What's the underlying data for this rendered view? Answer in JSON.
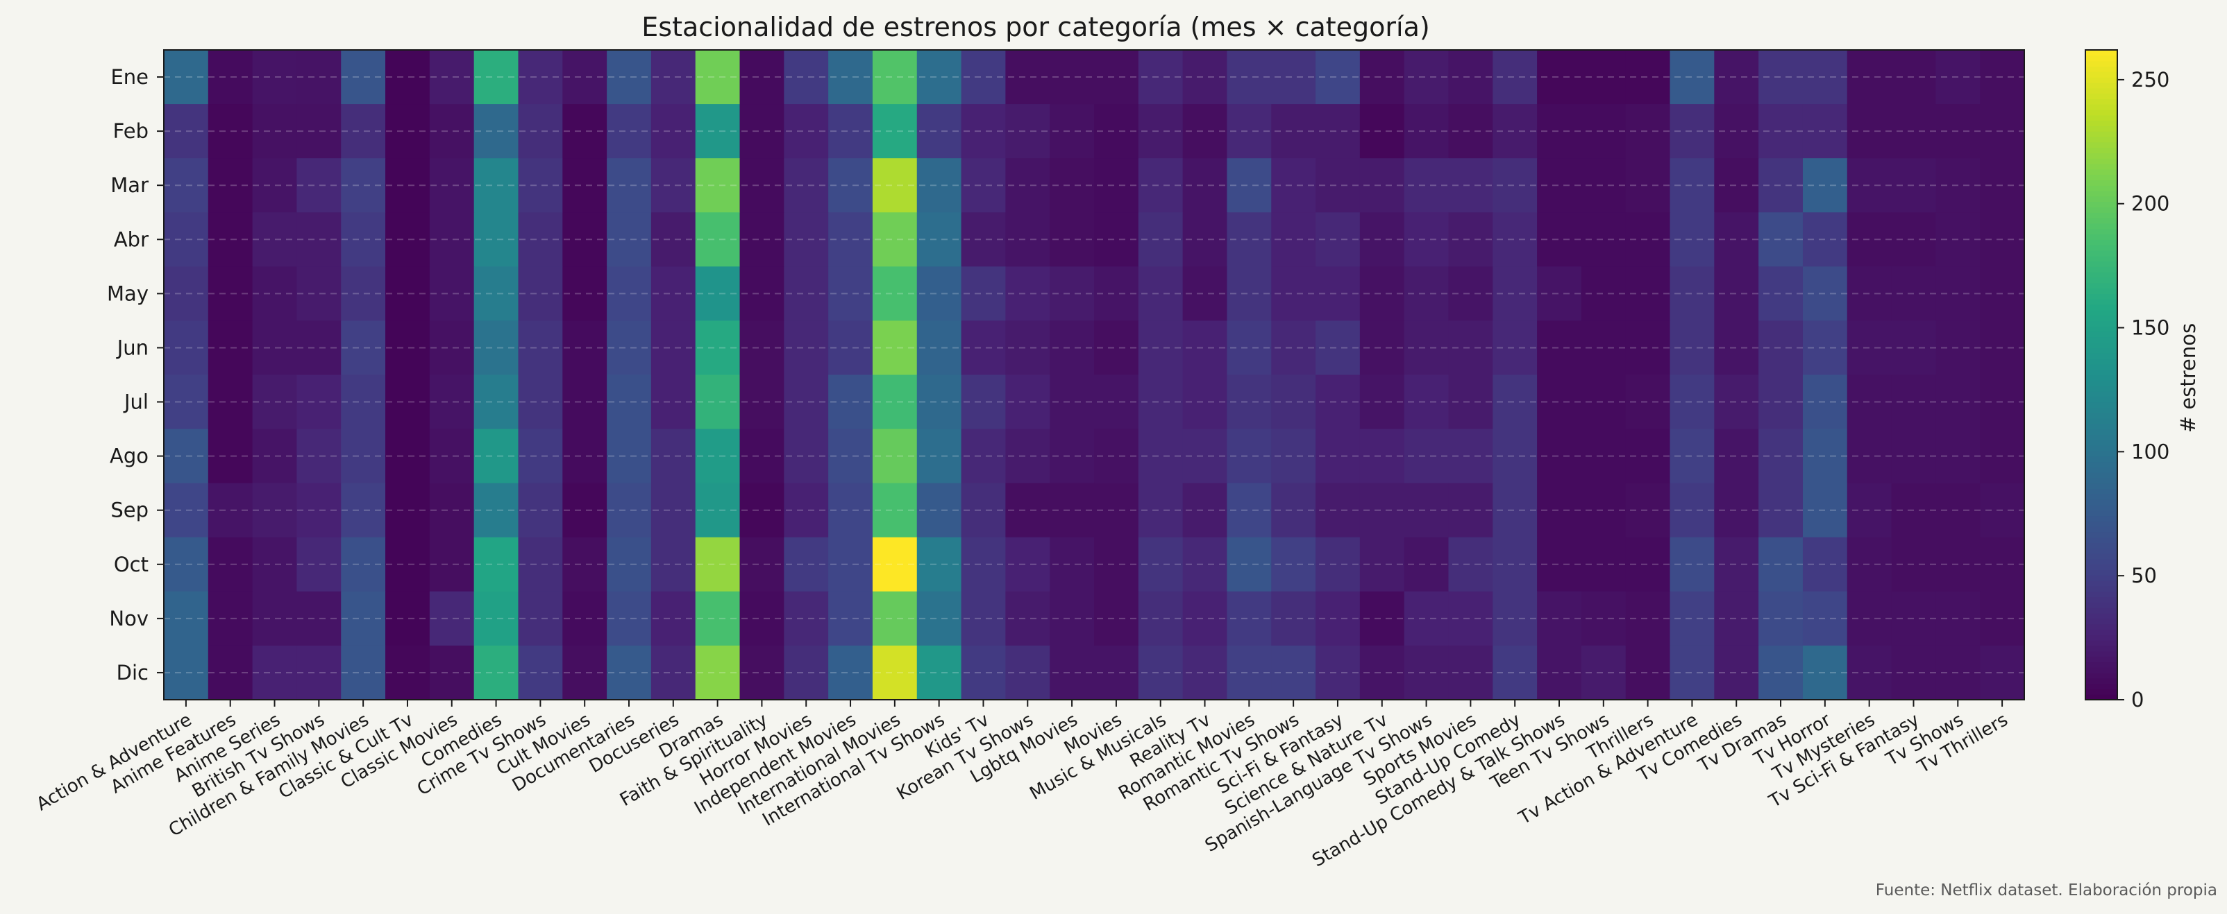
{
  "chart_data": {
    "type": "heatmap",
    "title": "Estacionalidad de estrenos por categoría (mes × categoría)",
    "source_note": "Fuente: Netflix dataset. Elaboración propia",
    "colorbar_label": "# estrenos",
    "colorbar_ticks": [
      0,
      50,
      100,
      150,
      200,
      250
    ],
    "value_range": [
      0,
      262
    ],
    "colormap": "viridis",
    "grid": "horizontal dashed",
    "rows": [
      "Ene",
      "Feb",
      "Mar",
      "Abr",
      "May",
      "Jun",
      "Jul",
      "Ago",
      "Sep",
      "Oct",
      "Nov",
      "Dic"
    ],
    "columns": [
      "Action & Adventure",
      "Anime Features",
      "Anime Series",
      "British Tv Shows",
      "Children & Family Movies",
      "Classic & Cult Tv",
      "Classic Movies",
      "Comedies",
      "Crime Tv Shows",
      "Cult Movies",
      "Documentaries",
      "Docuseries",
      "Dramas",
      "Faith & Spirituality",
      "Horror Movies",
      "Independent Movies",
      "International Movies",
      "International Tv Shows",
      "Kids' Tv",
      "Korean Tv Shows",
      "Lgbtq Movies",
      "Movies",
      "Music & Musicals",
      "Reality Tv",
      "Romantic Movies",
      "Romantic Tv Shows",
      "Sci-Fi & Fantasy",
      "Science & Nature Tv",
      "Spanish-Language Tv Shows",
      "Sports Movies",
      "Stand-Up Comedy",
      "Stand-Up Comedy & Talk Shows",
      "Teen Tv Shows",
      "Thrillers",
      "Tv Action & Adventure",
      "Tv Comedies",
      "Tv Dramas",
      "Tv Horror",
      "Tv Mysteries",
      "Tv Sci-Fi & Fantasy",
      "Tv Shows",
      "Tv Thrillers"
    ],
    "values": [
      [
        90,
        8,
        15,
        14,
        70,
        3,
        20,
        165,
        30,
        15,
        70,
        30,
        205,
        8,
        45,
        90,
        190,
        95,
        45,
        10,
        10,
        10,
        30,
        20,
        40,
        40,
        55,
        10,
        20,
        15,
        35,
        5,
        5,
        5,
        75,
        15,
        40,
        40,
        10,
        10,
        15,
        10
      ],
      [
        40,
        5,
        12,
        12,
        35,
        3,
        12,
        90,
        35,
        5,
        45,
        25,
        140,
        8,
        25,
        45,
        160,
        45,
        25,
        20,
        12,
        8,
        20,
        10,
        30,
        20,
        20,
        5,
        15,
        10,
        20,
        8,
        8,
        10,
        35,
        12,
        30,
        30,
        10,
        10,
        10,
        10
      ],
      [
        50,
        5,
        15,
        30,
        50,
        3,
        15,
        120,
        40,
        5,
        60,
        30,
        205,
        8,
        30,
        60,
        230,
        90,
        30,
        15,
        10,
        8,
        30,
        15,
        60,
        25,
        20,
        20,
        30,
        30,
        35,
        8,
        8,
        10,
        45,
        10,
        40,
        80,
        15,
        15,
        12,
        10
      ],
      [
        45,
        5,
        20,
        20,
        45,
        3,
        15,
        120,
        35,
        5,
        60,
        20,
        185,
        8,
        30,
        50,
        205,
        95,
        20,
        15,
        10,
        8,
        35,
        15,
        40,
        25,
        30,
        15,
        25,
        20,
        30,
        8,
        8,
        8,
        45,
        15,
        60,
        45,
        10,
        10,
        12,
        10
      ],
      [
        40,
        5,
        15,
        20,
        40,
        3,
        15,
        110,
        35,
        5,
        55,
        25,
        135,
        8,
        30,
        50,
        185,
        80,
        40,
        25,
        20,
        15,
        30,
        12,
        40,
        25,
        25,
        12,
        20,
        15,
        30,
        15,
        8,
        8,
        40,
        15,
        45,
        60,
        12,
        12,
        12,
        10
      ],
      [
        45,
        5,
        15,
        15,
        50,
        3,
        12,
        100,
        40,
        8,
        60,
        25,
        160,
        10,
        30,
        45,
        210,
        85,
        25,
        20,
        15,
        10,
        30,
        25,
        45,
        30,
        40,
        12,
        20,
        20,
        30,
        8,
        8,
        8,
        40,
        15,
        35,
        50,
        15,
        15,
        12,
        10
      ],
      [
        50,
        5,
        20,
        25,
        45,
        3,
        15,
        110,
        40,
        8,
        65,
        25,
        170,
        10,
        30,
        65,
        180,
        90,
        40,
        25,
        15,
        15,
        30,
        25,
        40,
        35,
        25,
        15,
        25,
        20,
        40,
        8,
        8,
        10,
        45,
        20,
        35,
        65,
        12,
        12,
        12,
        10
      ],
      [
        70,
        5,
        15,
        30,
        45,
        3,
        12,
        140,
        45,
        8,
        65,
        35,
        145,
        8,
        30,
        60,
        200,
        95,
        30,
        20,
        15,
        12,
        30,
        30,
        45,
        40,
        25,
        25,
        30,
        30,
        40,
        8,
        8,
        8,
        50,
        15,
        40,
        70,
        12,
        12,
        12,
        10
      ],
      [
        55,
        15,
        20,
        25,
        50,
        3,
        10,
        110,
        40,
        5,
        60,
        35,
        140,
        5,
        25,
        55,
        185,
        75,
        35,
        10,
        10,
        10,
        30,
        20,
        55,
        35,
        20,
        20,
        20,
        20,
        40,
        8,
        8,
        10,
        45,
        15,
        40,
        70,
        15,
        10,
        10,
        12
      ],
      [
        75,
        8,
        15,
        30,
        65,
        3,
        10,
        155,
        35,
        10,
        65,
        35,
        220,
        10,
        45,
        55,
        262,
        110,
        40,
        25,
        15,
        10,
        40,
        30,
        70,
        50,
        35,
        20,
        15,
        35,
        40,
        8,
        8,
        8,
        60,
        20,
        65,
        45,
        12,
        10,
        10,
        10
      ],
      [
        85,
        8,
        15,
        15,
        70,
        3,
        30,
        150,
        35,
        8,
        60,
        25,
        185,
        8,
        30,
        55,
        200,
        100,
        40,
        20,
        15,
        10,
        35,
        25,
        45,
        35,
        25,
        8,
        25,
        25,
        40,
        15,
        12,
        10,
        50,
        20,
        60,
        55,
        12,
        12,
        12,
        10
      ],
      [
        85,
        8,
        25,
        25,
        70,
        5,
        10,
        165,
        45,
        10,
        75,
        30,
        215,
        10,
        35,
        80,
        245,
        140,
        45,
        35,
        15,
        15,
        40,
        30,
        50,
        50,
        30,
        15,
        20,
        20,
        45,
        15,
        20,
        10,
        50,
        20,
        70,
        90,
        15,
        12,
        12,
        15
      ]
    ]
  }
}
